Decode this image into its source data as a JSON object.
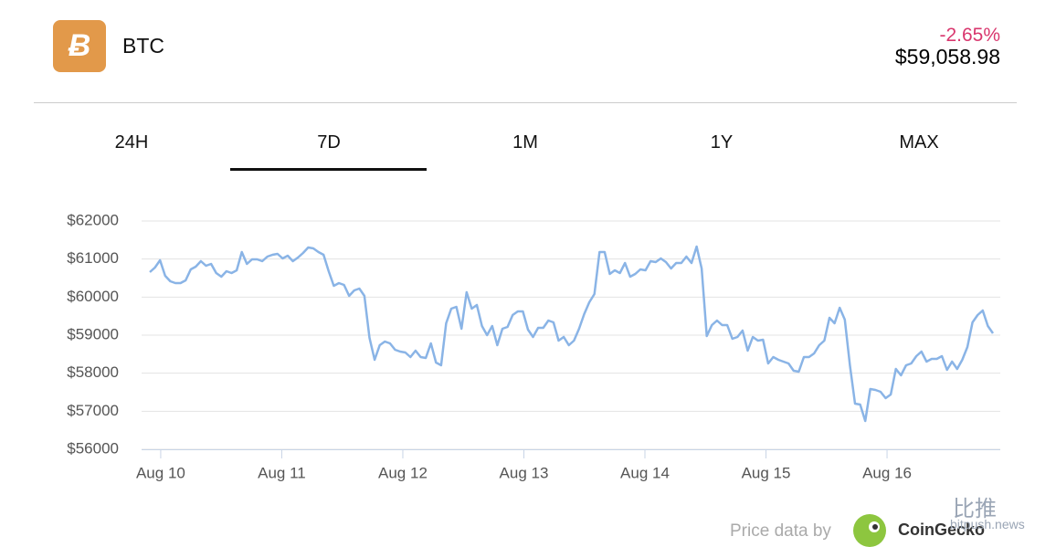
{
  "header": {
    "coin": "BTC",
    "change": "-2.65%",
    "price": "$59,058.98"
  },
  "tabs": [
    "24H",
    "7D",
    "1M",
    "1Y",
    "MAX"
  ],
  "footer": {
    "source": "Price data by",
    "provider": "CoinGecko"
  },
  "watermark": {
    "name": "比推",
    "site": "bitpush.news"
  },
  "chart_data": {
    "type": "line",
    "color": "#8ab4e6",
    "grid": true,
    "xlim": [
      -0.09,
      6.875
    ],
    "xticks": [
      {
        "value": 0,
        "label": "Aug 10"
      },
      {
        "value": 1,
        "label": "Aug 11"
      },
      {
        "value": 2,
        "label": "Aug 12"
      },
      {
        "value": 3,
        "label": "Aug 13"
      },
      {
        "value": 4,
        "label": "Aug 14"
      },
      {
        "value": 5,
        "label": "Aug 15"
      },
      {
        "value": 6,
        "label": "Aug 16"
      }
    ],
    "ylim": [
      56000,
      62000
    ],
    "yticks": [
      {
        "value": 56000,
        "label": "$56000"
      },
      {
        "value": 57000,
        "label": "$57000"
      },
      {
        "value": 58000,
        "label": "$58000"
      },
      {
        "value": 59000,
        "label": "$59000"
      },
      {
        "value": 60000,
        "label": "$60000"
      },
      {
        "value": 61000,
        "label": "$61000"
      },
      {
        "value": 62000,
        "label": "$62000"
      }
    ],
    "values": [
      60656,
      60776,
      60968,
      60560,
      60416,
      60368,
      60368,
      60440,
      60728,
      60800,
      60944,
      60824,
      60872,
      60632,
      60536,
      60680,
      60632,
      60704,
      61184,
      60872,
      60992,
      60992,
      60944,
      61064,
      61112,
      61136,
      61016,
      61088,
      60944,
      61040,
      61160,
      61304,
      61280,
      61184,
      61112,
      60680,
      60296,
      60368,
      60320,
      60032,
      60176,
      60224,
      60032,
      58928,
      58352,
      58736,
      58832,
      58784,
      58616,
      58568,
      58544,
      58424,
      58592,
      58424,
      58400,
      58784,
      58280,
      58208,
      59312,
      59696,
      59744,
      59168,
      60128,
      59696,
      59792,
      59240,
      59000,
      59240,
      58736,
      59168,
      59216,
      59528,
      59624,
      59624,
      59144,
      58952,
      59192,
      59192,
      59384,
      59336,
      58856,
      58952,
      58736,
      58856,
      59168,
      59552,
      59864,
      60080,
      61184,
      61184,
      60608,
      60704,
      60632,
      60896,
      60536,
      60608,
      60728,
      60704,
      60944,
      60920,
      61016,
      60920,
      60752,
      60896,
      60896,
      61064,
      60896,
      61328,
      60752,
      58976,
      59264,
      59384,
      59264,
      59264,
      58904,
      58952,
      59120,
      58592,
      58952,
      58856,
      58880,
      58256,
      58424,
      58352,
      58304,
      58256,
      58064,
      58040,
      58424,
      58424,
      58520,
      58736,
      58856,
      59456,
      59312,
      59720,
      59408,
      58208,
      57200,
      57176,
      56744,
      57584,
      57560,
      57512,
      57344,
      57440,
      58112,
      57944,
      58208,
      58256,
      58448,
      58568,
      58304,
      58376,
      58376,
      58448,
      58088,
      58304,
      58112,
      58352,
      58688,
      59336,
      59528,
      59648,
      59240,
      59048
    ]
  }
}
